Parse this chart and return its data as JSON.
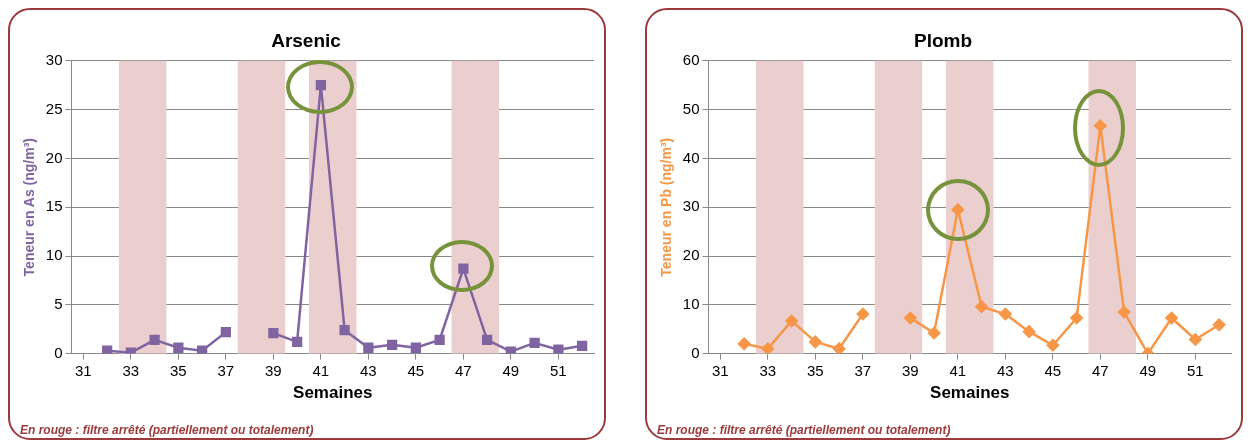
{
  "chart_data": [
    {
      "type": "line",
      "title": "Arsenic",
      "xlabel": "Semaines",
      "ylabel": "Teneur en As (ng/m³)",
      "x": [
        32,
        33,
        34,
        35,
        36,
        37,
        38,
        39,
        40,
        41,
        42,
        43,
        44,
        45,
        46,
        47,
        48,
        49,
        50,
        51,
        52
      ],
      "series": [
        {
          "color": "#8064a2",
          "values": [
            0.3,
            0.1,
            1.4,
            0.6,
            0.3,
            2.2,
            null,
            2.1,
            1.2,
            27.5,
            2.4,
            0.6,
            0.9,
            0.6,
            1.4,
            8.7,
            1.4,
            0.2,
            1.1,
            0.4,
            0.8
          ]
        }
      ],
      "xlim": [
        30.5,
        52.5
      ],
      "xticks": [
        31,
        33,
        35,
        37,
        39,
        41,
        43,
        45,
        47,
        49,
        51
      ],
      "ylim": [
        0,
        30
      ],
      "yticks": [
        0,
        5,
        10,
        15,
        20,
        25,
        30
      ],
      "bands": [
        {
          "axis": "x",
          "from": 32.5,
          "to": 34.5,
          "color": "#ebcfcf"
        },
        {
          "axis": "x",
          "from": 37.5,
          "to": 39.5,
          "color": "#ebcfcf"
        },
        {
          "axis": "x",
          "from": 40.5,
          "to": 42.5,
          "color": "#ebcfcf"
        },
        {
          "axis": "x",
          "from": 46.5,
          "to": 48.5,
          "color": "#ebcfcf"
        }
      ],
      "grid": "y",
      "legend": false,
      "marker": "square",
      "line_style": "solid",
      "annotations": [
        "En rouge : filtre arrêté (partiellement ou totalement)"
      ]
    },
    {
      "type": "line",
      "title": "Plomb",
      "xlabel": "Semaines",
      "ylabel": "Teneur en Pb (ng/m³)",
      "x": [
        32,
        33,
        34,
        35,
        36,
        37,
        38,
        39,
        40,
        41,
        42,
        43,
        44,
        45,
        46,
        47,
        48,
        49,
        50,
        51,
        52
      ],
      "series": [
        {
          "color": "#f79646",
          "values": [
            2.0,
            1.0,
            6.7,
            2.4,
            1.0,
            8.1,
            null,
            7.3,
            4.2,
            29.5,
            9.6,
            8.1,
            4.5,
            1.7,
            7.3,
            46.7,
            8.5,
            0,
            7.3,
            2.9,
            5.9
          ]
        }
      ],
      "xlim": [
        30.5,
        52.5
      ],
      "xticks": [
        31,
        33,
        35,
        37,
        39,
        41,
        43,
        45,
        47,
        49,
        51
      ],
      "ylim": [
        0,
        60
      ],
      "yticks": [
        0,
        10,
        20,
        30,
        40,
        50,
        60
      ],
      "bands": [
        {
          "axis": "x",
          "from": 32.5,
          "to": 34.5,
          "color": "#ebcfcf"
        },
        {
          "axis": "x",
          "from": 37.5,
          "to": 39.5,
          "color": "#ebcfcf"
        },
        {
          "axis": "x",
          "from": 40.5,
          "to": 42.5,
          "color": "#ebcfcf"
        },
        {
          "axis": "x",
          "from": 46.5,
          "to": 48.5,
          "color": "#ebcfcf"
        }
      ],
      "grid": "y",
      "legend": false,
      "marker": "diamond",
      "line_style": "solid",
      "annotations": [
        "En rouge : filtre arrêté (partiellement ou totalement)"
      ]
    }
  ]
}
